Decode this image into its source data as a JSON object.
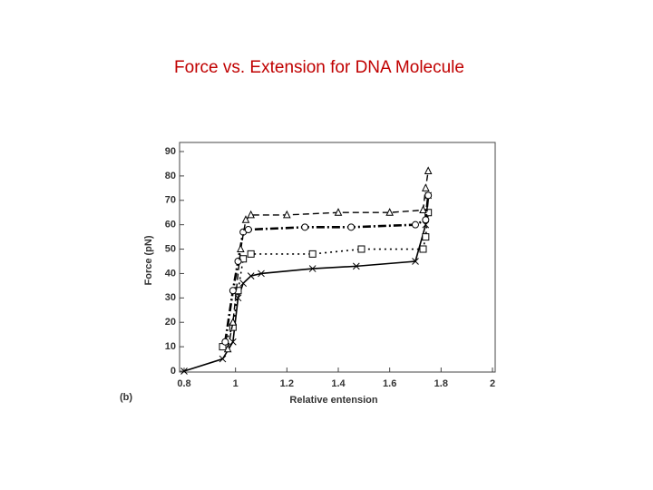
{
  "chart_data": {
    "type": "line",
    "title": "Force vs. Extension for DNA Molecule",
    "annotation": "(b)",
    "xlabel": "Relative entension",
    "ylabel": "Force (pN)",
    "xlim": [
      0.8,
      2
    ],
    "ylim": [
      0,
      90
    ],
    "xticks": [
      0.8,
      1,
      1.2,
      1.4,
      1.6,
      1.8,
      2
    ],
    "yticks": [
      0,
      10,
      20,
      30,
      40,
      50,
      60,
      70,
      80,
      90
    ],
    "series": [
      {
        "name": "solid",
        "color": "#000000",
        "line_style": "solid",
        "marker": "x",
        "x": [
          0.8,
          0.95,
          0.99,
          1.01,
          1.03,
          1.06,
          1.1,
          1.3,
          1.47,
          1.7,
          1.74,
          1.75
        ],
        "values": [
          0,
          5,
          12,
          30,
          36,
          39,
          40,
          42,
          43,
          45,
          60,
          72
        ]
      },
      {
        "name": "dotted",
        "color": "#000000",
        "line_style": "dotted",
        "marker": "square",
        "x": [
          0.95,
          0.99,
          1.01,
          1.03,
          1.06,
          1.3,
          1.49,
          1.73,
          1.74,
          1.75
        ],
        "values": [
          10,
          18,
          33,
          46,
          48,
          48,
          50,
          50,
          55,
          65
        ]
      },
      {
        "name": "dashdot",
        "color": "#000000",
        "line_style": "dashdot",
        "marker": "circle",
        "x": [
          0.96,
          0.99,
          1.01,
          1.03,
          1.05,
          1.27,
          1.45,
          1.7,
          1.74,
          1.75
        ],
        "values": [
          12,
          33,
          45,
          57,
          58,
          59,
          59,
          60,
          62,
          72
        ]
      },
      {
        "name": "dashed",
        "color": "#000000",
        "line_style": "dashed",
        "marker": "triangle",
        "x": [
          0.97,
          0.99,
          1.02,
          1.04,
          1.06,
          1.2,
          1.4,
          1.6,
          1.73,
          1.74,
          1.75
        ],
        "values": [
          9,
          20,
          50,
          62,
          64,
          64,
          65,
          65,
          66,
          75,
          82
        ]
      }
    ]
  }
}
